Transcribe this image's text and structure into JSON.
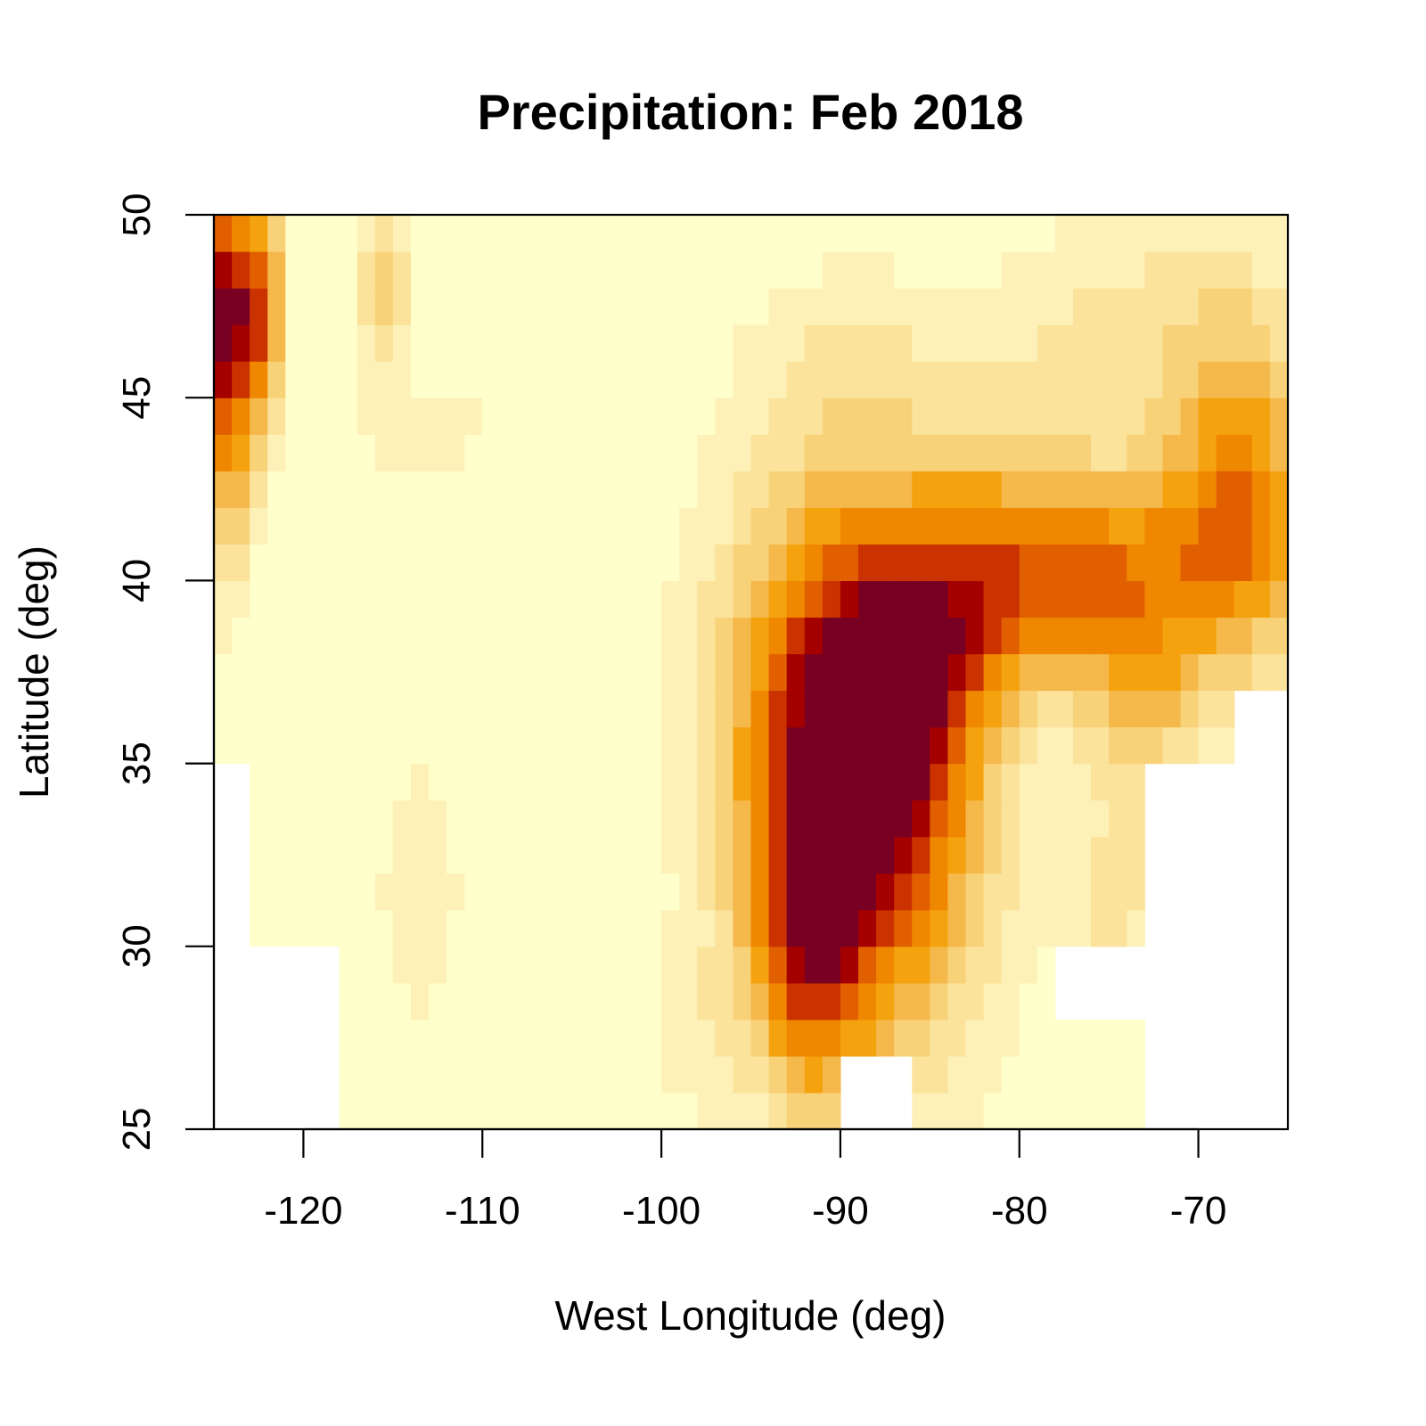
{
  "chart_data": {
    "type": "heatmap",
    "title": "Precipitation: Feb 2018",
    "xlabel": "West Longitude (deg)",
    "ylabel": "Latitude (deg)",
    "xlim": [
      -125,
      -65
    ],
    "ylim": [
      25,
      50
    ],
    "x_ticks": [
      -120,
      -110,
      -100,
      -90,
      -80,
      -70
    ],
    "y_ticks": [
      25,
      30,
      35,
      40,
      45,
      50
    ],
    "grid": false,
    "legend": "none",
    "color_scale": [
      "#ffffcc",
      "#fdf1b8",
      "#fbe39b",
      "#f8d279",
      "#f5b84a",
      "#f4a20e",
      "#ef8700",
      "#e25f00",
      "#ca3200",
      "#a40000",
      "#780022"
    ],
    "grid_resolution_deg": 1,
    "precip_field": {
      "background": 0.02,
      "blobs": [
        {
          "lon": -89.2,
          "lat": 35.0,
          "rlon": 4.6,
          "rlat": 5.2,
          "rot": 25,
          "amp": 1.0
        },
        {
          "lon": -91.8,
          "lat": 29.6,
          "rlon": 2.1,
          "rlat": 2.8,
          "rot": 0,
          "amp": 0.45
        },
        {
          "lon": -84.5,
          "lat": 39.0,
          "rlon": 5.0,
          "rlat": 2.7,
          "rot": 30,
          "amp": 0.42
        },
        {
          "lon": -75.8,
          "lat": 40.2,
          "rlon": 5.2,
          "rlat": 1.9,
          "rot": 5,
          "amp": 0.55
        },
        {
          "lon": -67.5,
          "lat": 42.0,
          "rlon": 2.8,
          "rlat": 3.2,
          "rot": 0,
          "amp": 0.52
        },
        {
          "lon": -73.0,
          "lat": 37.0,
          "rlon": 2.6,
          "rlat": 1.8,
          "rot": 0,
          "amp": 0.32
        },
        {
          "lon": -72.5,
          "lat": 46.8,
          "rlon": 6.0,
          "rlat": 2.2,
          "rot": 0,
          "amp": 0.2
        },
        {
          "lon": -89.0,
          "lat": 46.0,
          "rlon": 4.0,
          "rlat": 1.8,
          "rot": 0,
          "amp": 0.12
        },
        {
          "lon": -74.5,
          "lat": 31.5,
          "rlon": 1.8,
          "rlat": 2.2,
          "rot": 0,
          "amp": 0.2
        },
        {
          "lon": -124.3,
          "lat": 47.5,
          "rlon": 1.1,
          "rlat": 2.2,
          "rot": 0,
          "amp": 0.92
        },
        {
          "lon": -122.2,
          "lat": 47.5,
          "rlon": 0.8,
          "rlat": 2.4,
          "rot": 0,
          "amp": 0.55
        },
        {
          "lon": -124.2,
          "lat": 43.0,
          "rlon": 1.0,
          "rlat": 2.5,
          "rot": 0,
          "amp": 0.38
        },
        {
          "lon": -115.5,
          "lat": 48.0,
          "rlon": 1.1,
          "rlat": 1.3,
          "rot": 0,
          "amp": 0.33
        },
        {
          "lon": -112.0,
          "lat": 44.2,
          "rlon": 1.3,
          "rlat": 1.0,
          "rot": 0,
          "amp": 0.17
        },
        {
          "lon": -115.5,
          "lat": 44.5,
          "rlon": 0.9,
          "rlat": 1.3,
          "rot": 0,
          "amp": 0.14
        },
        {
          "lon": -113.5,
          "lat": 31.5,
          "rlon": 2.0,
          "rlat": 3.0,
          "rot": 0,
          "amp": 0.12
        },
        {
          "lon": -98.0,
          "lat": 27.5,
          "rlon": 2.0,
          "rlat": 1.8,
          "rot": 0,
          "amp": 0.1
        }
      ]
    },
    "missing_regions": [
      {
        "lon": [
          -125,
          -123
        ],
        "lat": [
          25,
          35
        ]
      },
      {
        "lon": [
          -123,
          -118
        ],
        "lat": [
          25,
          30
        ]
      },
      {
        "lon": [
          -90,
          -85.5
        ],
        "lat": [
          25,
          27.5
        ]
      },
      {
        "lon": [
          -72.5,
          -67.5
        ],
        "lat": [
          25,
          35
        ]
      },
      {
        "lon": [
          -67.5,
          -65
        ],
        "lat": [
          25,
          37.5
        ]
      },
      {
        "lon": [
          -77.5,
          -72.5
        ],
        "lat": [
          28,
          30
        ]
      }
    ]
  }
}
